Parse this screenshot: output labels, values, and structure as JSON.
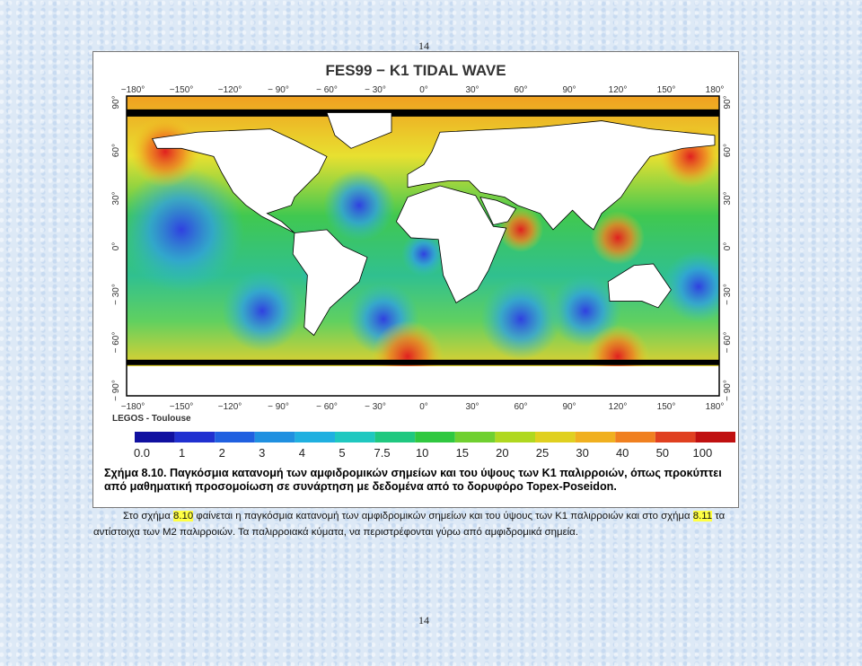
{
  "header": {
    "page_number": "14"
  },
  "figure": {
    "title": "FES99 − K1 TIDAL WAVE",
    "lon_labels": [
      "−180°",
      "−150°",
      "−120°",
      "− 90°",
      "− 60°",
      "− 30°",
      "0°",
      "30°",
      "60°",
      "90°",
      "120°",
      "150°",
      "180°"
    ],
    "lat_labels": [
      "90°",
      "60°",
      "30°",
      "0°",
      "− 30°",
      "− 60°",
      "− 90°"
    ],
    "credit": "LEGOS - Toulouse",
    "colorbar_labels": [
      "0.0",
      "1",
      "2",
      "3",
      "4",
      "5",
      "7.5",
      "10",
      "15",
      "20",
      "25",
      "30",
      "40",
      "50",
      "100"
    ]
  },
  "caption": "Σχήμα 8.10. Παγκόσμια κατανομή των αμφιδρομικών σημείων και του ύψους των Κ1 παλιρροιών, όπως προκύπτει από μαθηματική προσομοίωση σε συνάρτηση με δεδομένα από το δορυφόρο Topex-Poseidon.",
  "paragraph": [
    "Στο σχήμα ",
    "8.10",
    " φαίνεται η παγκόσμια κατανομή των αμφιδρομικών σημείων και του ύψους των Κ1 παλιρροιών και στο σχήμα ",
    "8.11",
    " τα αντίστοιχα των Μ2 παλιρροιών. Τα παλιρροιακά κύματα, να περιστρέφονται γύρω από αμφιδρομικά σημεία."
  ],
  "footer": {
    "page_number": "14"
  }
}
